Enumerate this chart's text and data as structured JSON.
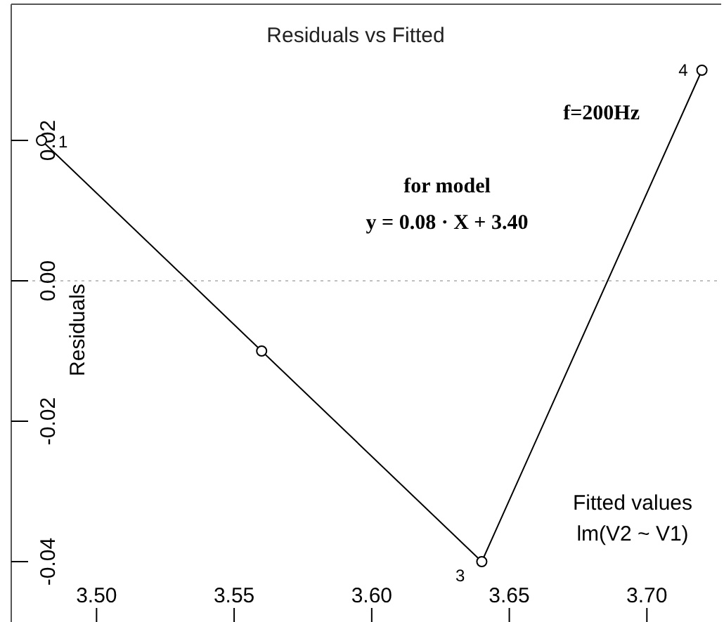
{
  "chart_data": {
    "type": "line",
    "title": "Residuals vs Fitted",
    "xlabel": "Fitted values\nlm(V2 ~ V1)",
    "ylabel": "Residuals",
    "x": [
      3.48,
      3.56,
      3.64,
      3.72
    ],
    "series": [
      {
        "color": "#000000",
        "values": [
          0.02,
          -0.01,
          -0.04,
          0.03
        ]
      }
    ],
    "xlim": [
      3.469,
      3.727
    ],
    "xticks": [
      {
        "value": 3.5,
        "label": "3.50"
      },
      {
        "value": 3.55,
        "label": "3.55"
      },
      {
        "value": 3.6,
        "label": "3.60"
      },
      {
        "value": 3.65,
        "label": "3.65"
      },
      {
        "value": 3.7,
        "label": "3.70"
      }
    ],
    "ylim": [
      -0.0486,
      0.0394
    ],
    "yticks": [
      {
        "value": -0.04,
        "label": "-0.04"
      },
      {
        "value": -0.02,
        "label": "-0.02"
      },
      {
        "value": 0,
        "label": "0.00"
      },
      {
        "value": 0.02,
        "label": "0.02"
      }
    ],
    "ref_lines": [
      {
        "axis": "y",
        "value": 0,
        "color": "#c0c0c0",
        "line_style": "dotted"
      }
    ],
    "marker": "circle",
    "line_style": "solid",
    "grid": false,
    "annotations": [
      {
        "text": "1",
        "x": 3.48,
        "y": 0.02
      },
      {
        "text": "3",
        "x": 3.64,
        "y": -0.04
      },
      {
        "text": "4",
        "x": 3.72,
        "y": 0.03
      },
      "f=200Hz",
      "for model",
      "y = 0.08 · X + 3.40"
    ]
  }
}
